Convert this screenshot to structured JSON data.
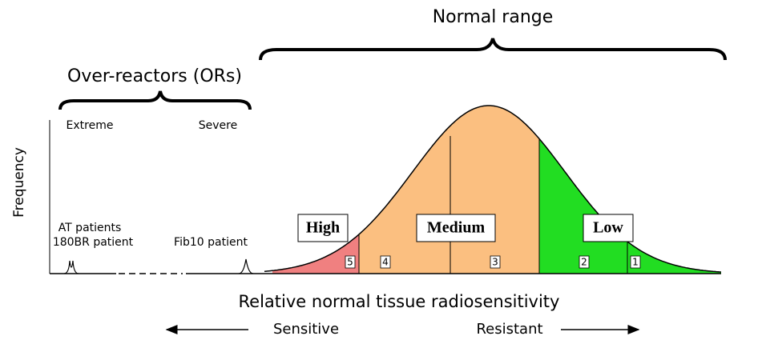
{
  "title": "Normal range",
  "over_reactors": {
    "title": "Over-reactors (ORs)",
    "extreme": "Extreme",
    "severe": "Severe"
  },
  "y_axis_label": "Frequency",
  "patients": {
    "at": "AT patients",
    "br": "180BR patient",
    "fib": "Fib10 patient"
  },
  "groups": [
    "High",
    "Medium",
    "Low"
  ],
  "zones": [
    "5",
    "4",
    "3",
    "2",
    "1"
  ],
  "x_axis_label": "Relative normal tissue radiosensitivity",
  "directions": {
    "left": "Sensitive",
    "right": "Resistant"
  }
}
